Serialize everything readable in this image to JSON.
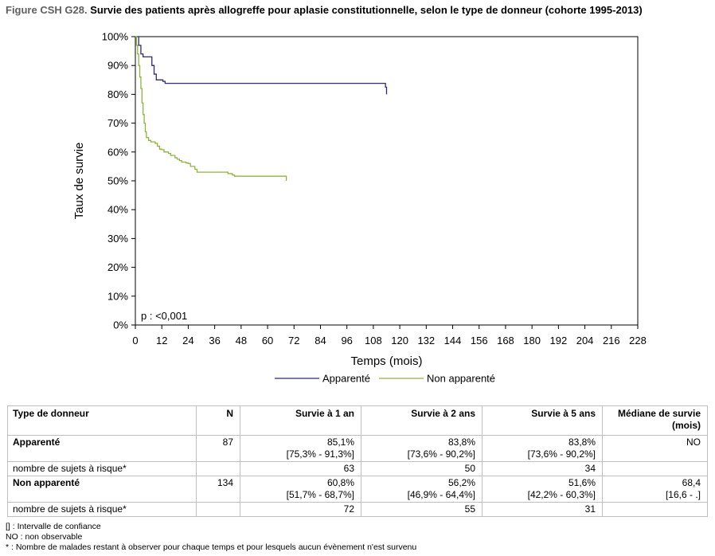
{
  "title_label": "Figure CSH G28.",
  "title_text": " Survie des patients après allogreffe pour aplasie constitutionnelle, selon le type de donneur (cohorte 1995-2013)",
  "chart_data": {
    "type": "line",
    "step": true,
    "xlabel": "Temps (mois)",
    "ylabel": "Taux de survie",
    "xlim": [
      0,
      228
    ],
    "ylim": [
      0,
      100
    ],
    "xticks": [
      0,
      12,
      24,
      36,
      48,
      60,
      72,
      84,
      96,
      108,
      120,
      132,
      144,
      156,
      168,
      180,
      192,
      204,
      216,
      228
    ],
    "yticks": [
      "0%",
      "10%",
      "20%",
      "30%",
      "40%",
      "50%",
      "60%",
      "70%",
      "80%",
      "90%",
      "100%"
    ],
    "annotation": "p : <0,001",
    "legend_position": "bottom",
    "series": [
      {
        "name": "Apparenté",
        "color": "#2b2b73",
        "points": [
          [
            0,
            100
          ],
          [
            1,
            100
          ],
          [
            1.5,
            97
          ],
          [
            2.5,
            94
          ],
          [
            3.5,
            93
          ],
          [
            7,
            93
          ],
          [
            7.5,
            90
          ],
          [
            8.5,
            87
          ],
          [
            9.5,
            85
          ],
          [
            12,
            85
          ],
          [
            12.5,
            84.5
          ],
          [
            13.5,
            83.8
          ],
          [
            113,
            83.8
          ],
          [
            113.5,
            82.5
          ],
          [
            114,
            80
          ]
        ]
      },
      {
        "name": "Non apparenté",
        "color": "#8db53a",
        "points": [
          [
            0,
            100
          ],
          [
            0.5,
            97
          ],
          [
            1,
            94
          ],
          [
            1.5,
            90
          ],
          [
            2,
            86
          ],
          [
            2.5,
            82
          ],
          [
            3,
            77
          ],
          [
            3.5,
            73
          ],
          [
            4,
            70
          ],
          [
            4.5,
            67
          ],
          [
            5,
            65
          ],
          [
            6,
            64
          ],
          [
            7,
            63.5
          ],
          [
            9,
            63
          ],
          [
            10,
            62
          ],
          [
            11,
            61
          ],
          [
            12,
            60.8
          ],
          [
            13,
            60
          ],
          [
            15,
            59.5
          ],
          [
            16,
            58.8
          ],
          [
            18,
            58
          ],
          [
            19,
            57.5
          ],
          [
            20,
            57
          ],
          [
            21,
            56.5
          ],
          [
            23,
            56.2
          ],
          [
            24,
            56
          ],
          [
            25,
            55
          ],
          [
            27,
            54
          ],
          [
            28,
            53
          ],
          [
            41,
            53
          ],
          [
            42,
            52.5
          ],
          [
            44,
            52
          ],
          [
            45,
            51.6
          ],
          [
            68,
            51.6
          ],
          [
            68.5,
            50
          ]
        ]
      }
    ]
  },
  "table": {
    "headers": [
      "Type de donneur",
      "N",
      "Survie à 1 an",
      "Survie à 2 ans",
      "Survie à 5 ans",
      "Médiane de survie (mois)"
    ],
    "rows": [
      {
        "type": "group",
        "label": "Apparenté",
        "n": "87",
        "s1": "85,1%",
        "ci1": "[75,3% - 91,3%]",
        "s2": "83,8%",
        "ci2": "[73,6% - 90,2%]",
        "s5": "83,8%",
        "ci5": "[73,6% - 90,2%]",
        "med": "NO",
        "medci": ""
      },
      {
        "type": "risk",
        "label": "nombre de sujets à risque*",
        "r1": "63",
        "r2": "50",
        "r5": "34"
      },
      {
        "type": "group",
        "label": "Non apparenté",
        "n": "134",
        "s1": "60,8%",
        "ci1": "[51,7% - 68,7%]",
        "s2": "56,2%",
        "ci2": "[46,9% - 64,4%]",
        "s5": "51,6%",
        "ci5": "[42,2% - 60,3%]",
        "med": "68,4",
        "medci": "[16,6 - .]"
      },
      {
        "type": "risk",
        "label": "nombre de sujets à risque*",
        "r1": "72",
        "r2": "55",
        "r5": "31"
      }
    ]
  },
  "notes": [
    "[] : Intervalle de confiance",
    "NO : non observable",
    "* : Nombre de malades restant à observer pour chaque temps et pour lesquels aucun évènement n'est survenu"
  ]
}
